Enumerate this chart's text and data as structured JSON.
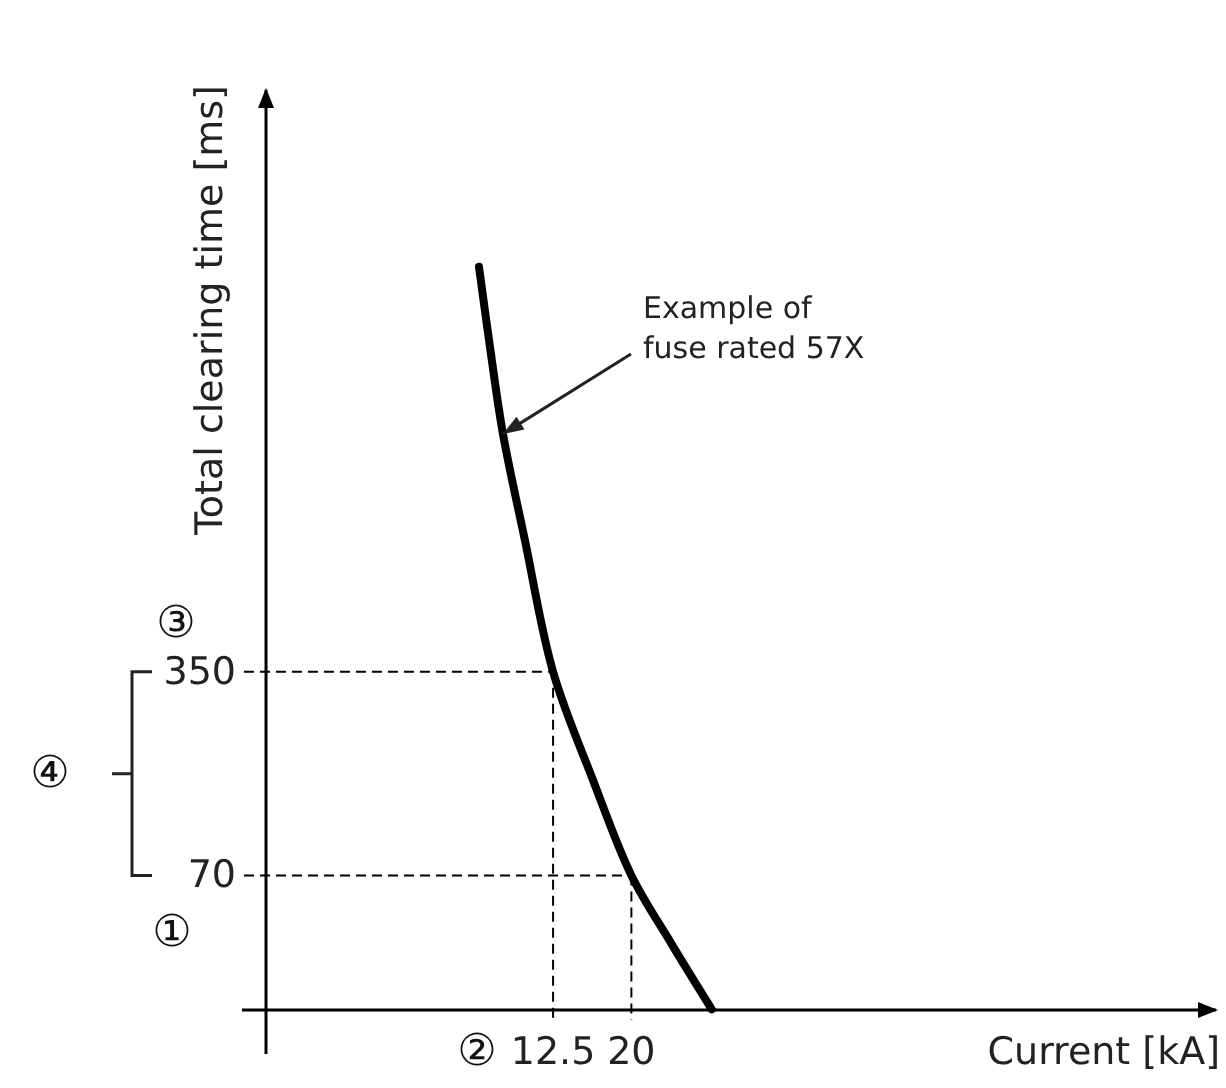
{
  "chart_data": {
    "type": "line",
    "xlabel": "Current [kA]",
    "ylabel": "Total clearing time [ms]",
    "xlim": [
      -15,
      76
    ],
    "ylim": [
      -115,
      1150
    ],
    "xticks": [
      12.5,
      20
    ],
    "yticks": [
      350,
      70
    ],
    "series": [
      {
        "color": "#000000",
        "x": [
          5.4,
          6.5,
          7.7,
          9.8,
          12.5,
          16.3,
          20,
          23.8,
          27.7
        ],
        "values": [
          907,
          792,
          677,
          531,
          350,
          202,
          70,
          -23,
          -114
        ]
      }
    ],
    "ref_lines": [
      {
        "axis": "y",
        "value": 350,
        "line_style": "dashed"
      },
      {
        "axis": "y",
        "value": 70,
        "line_style": "dashed"
      },
      {
        "axis": "x",
        "value": 12.5,
        "line_style": "dashed"
      },
      {
        "axis": "x",
        "value": 20,
        "line_style": "dashed"
      }
    ],
    "annotations": [
      {
        "text": "Example of\nfuse rated 57X",
        "x": 7.7,
        "y": 677
      },
      "③",
      "①",
      "④",
      "②"
    ],
    "grid": false,
    "line_style": "solid"
  }
}
